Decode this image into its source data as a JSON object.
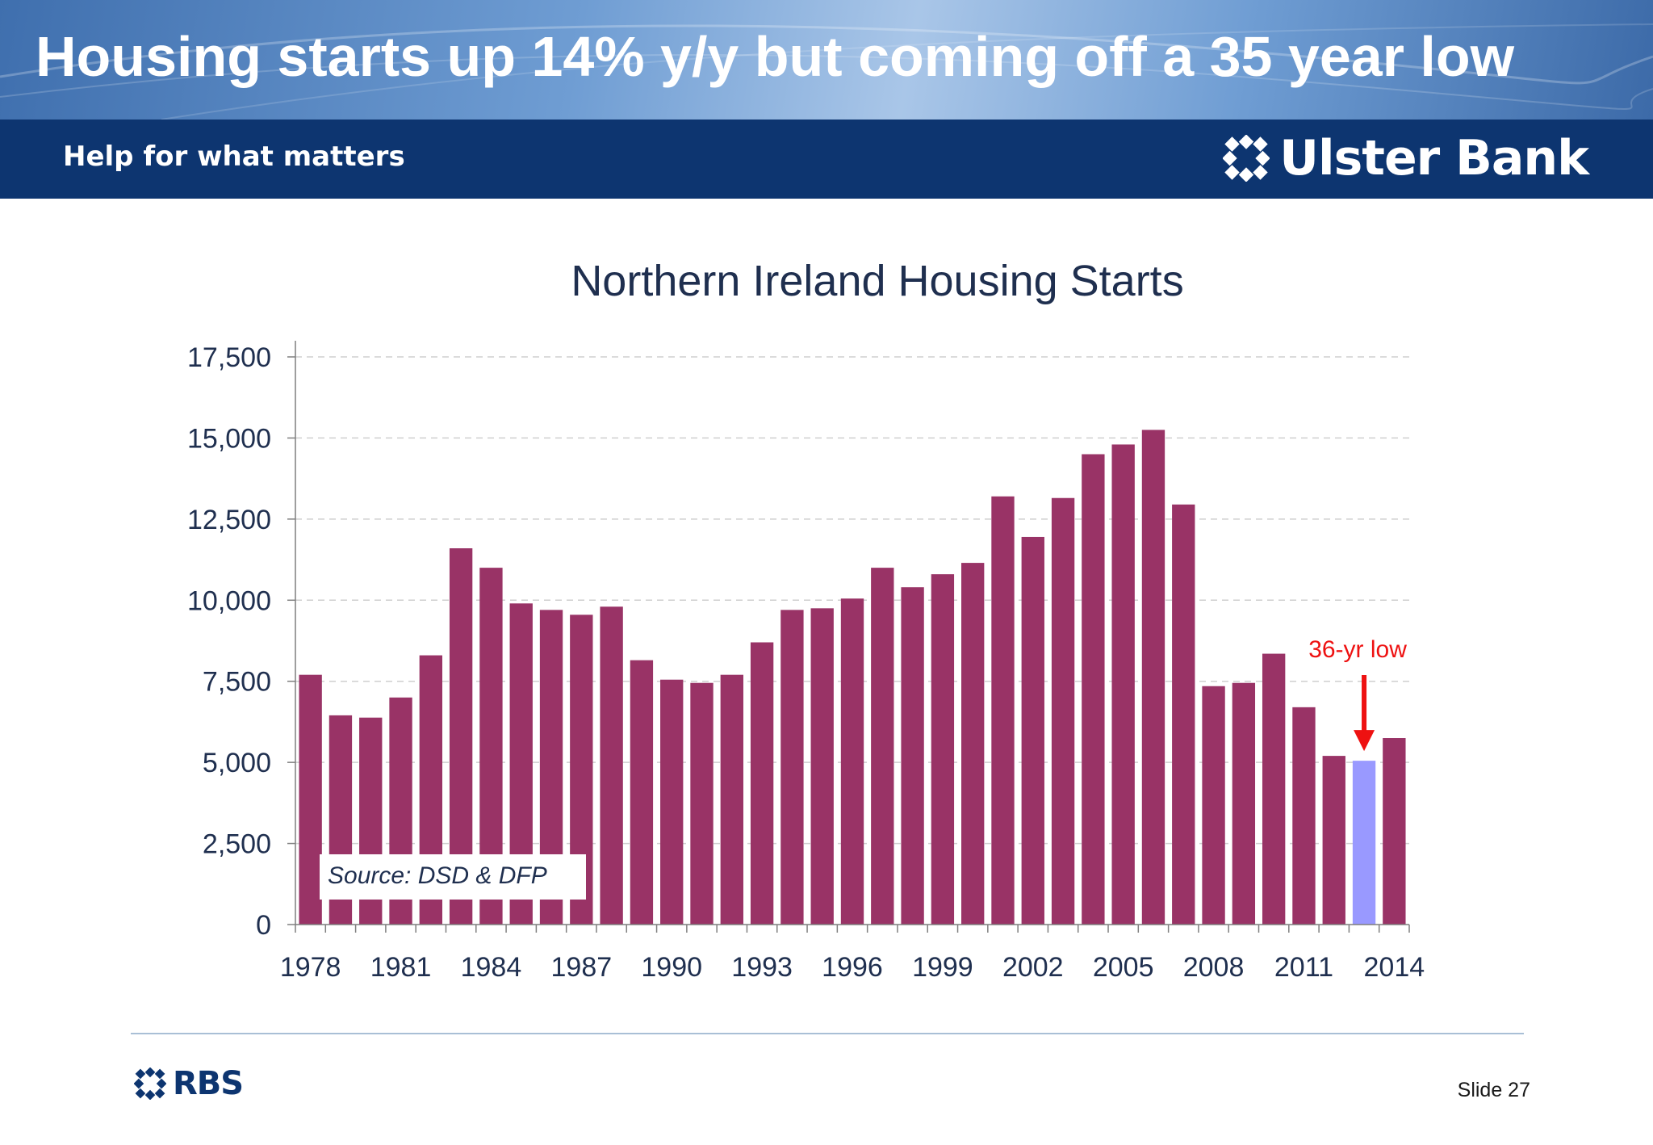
{
  "slide": {
    "title": "Housing starts up 14% y/y but coming off a 35 year low",
    "tagline": "Help for what matters",
    "brand_name": "Ulster Bank",
    "brand_icon": "ulster-bank-daisy-icon",
    "footer_brand": "RBS",
    "footer_icon": "rbs-daisy-icon",
    "slide_number": "Slide 27",
    "colors": {
      "header_band": "#0d3570",
      "bar": "#993366",
      "highlight_bar": "#9999ff",
      "annotation": "#ee1111",
      "text_dark": "#1f2f4f"
    }
  },
  "chart_data": {
    "type": "bar",
    "title": "Northern Ireland Housing Starts",
    "xlabel": "",
    "ylabel": "",
    "ylim": [
      0,
      17500
    ],
    "yticks": [
      0,
      2500,
      5000,
      7500,
      10000,
      12500,
      15000,
      17500
    ],
    "ytick_labels": [
      "0",
      "2,500",
      "5,000",
      "7,500",
      "10,000",
      "12,500",
      "15,000",
      "17,500"
    ],
    "xtick_labels": [
      "1978",
      "1981",
      "1984",
      "1987",
      "1990",
      "1993",
      "1996",
      "1999",
      "2002",
      "2005",
      "2008",
      "2011",
      "2014"
    ],
    "categories": [
      1978,
      1979,
      1980,
      1981,
      1982,
      1983,
      1984,
      1985,
      1986,
      1987,
      1988,
      1989,
      1990,
      1991,
      1992,
      1993,
      1994,
      1995,
      1996,
      1997,
      1998,
      1999,
      2000,
      2001,
      2002,
      2003,
      2004,
      2005,
      2006,
      2007,
      2008,
      2009,
      2010,
      2011,
      2012,
      2013,
      2014
    ],
    "values": [
      7700,
      6450,
      6380,
      7000,
      8300,
      11600,
      11000,
      9900,
      9700,
      9550,
      9800,
      8150,
      7550,
      7450,
      7700,
      8700,
      9700,
      9750,
      10050,
      11000,
      10400,
      10800,
      11150,
      13200,
      11950,
      13150,
      14500,
      14800,
      15250,
      12950,
      7350,
      7450,
      8350,
      6700,
      5200,
      5050,
      5750
    ],
    "highlight_category": 2013,
    "annotation": {
      "text": "36-yr low",
      "category": 2013
    },
    "source_note": "Source: DSD & DFP",
    "grid": "horizontal dashed",
    "legend": "none"
  }
}
